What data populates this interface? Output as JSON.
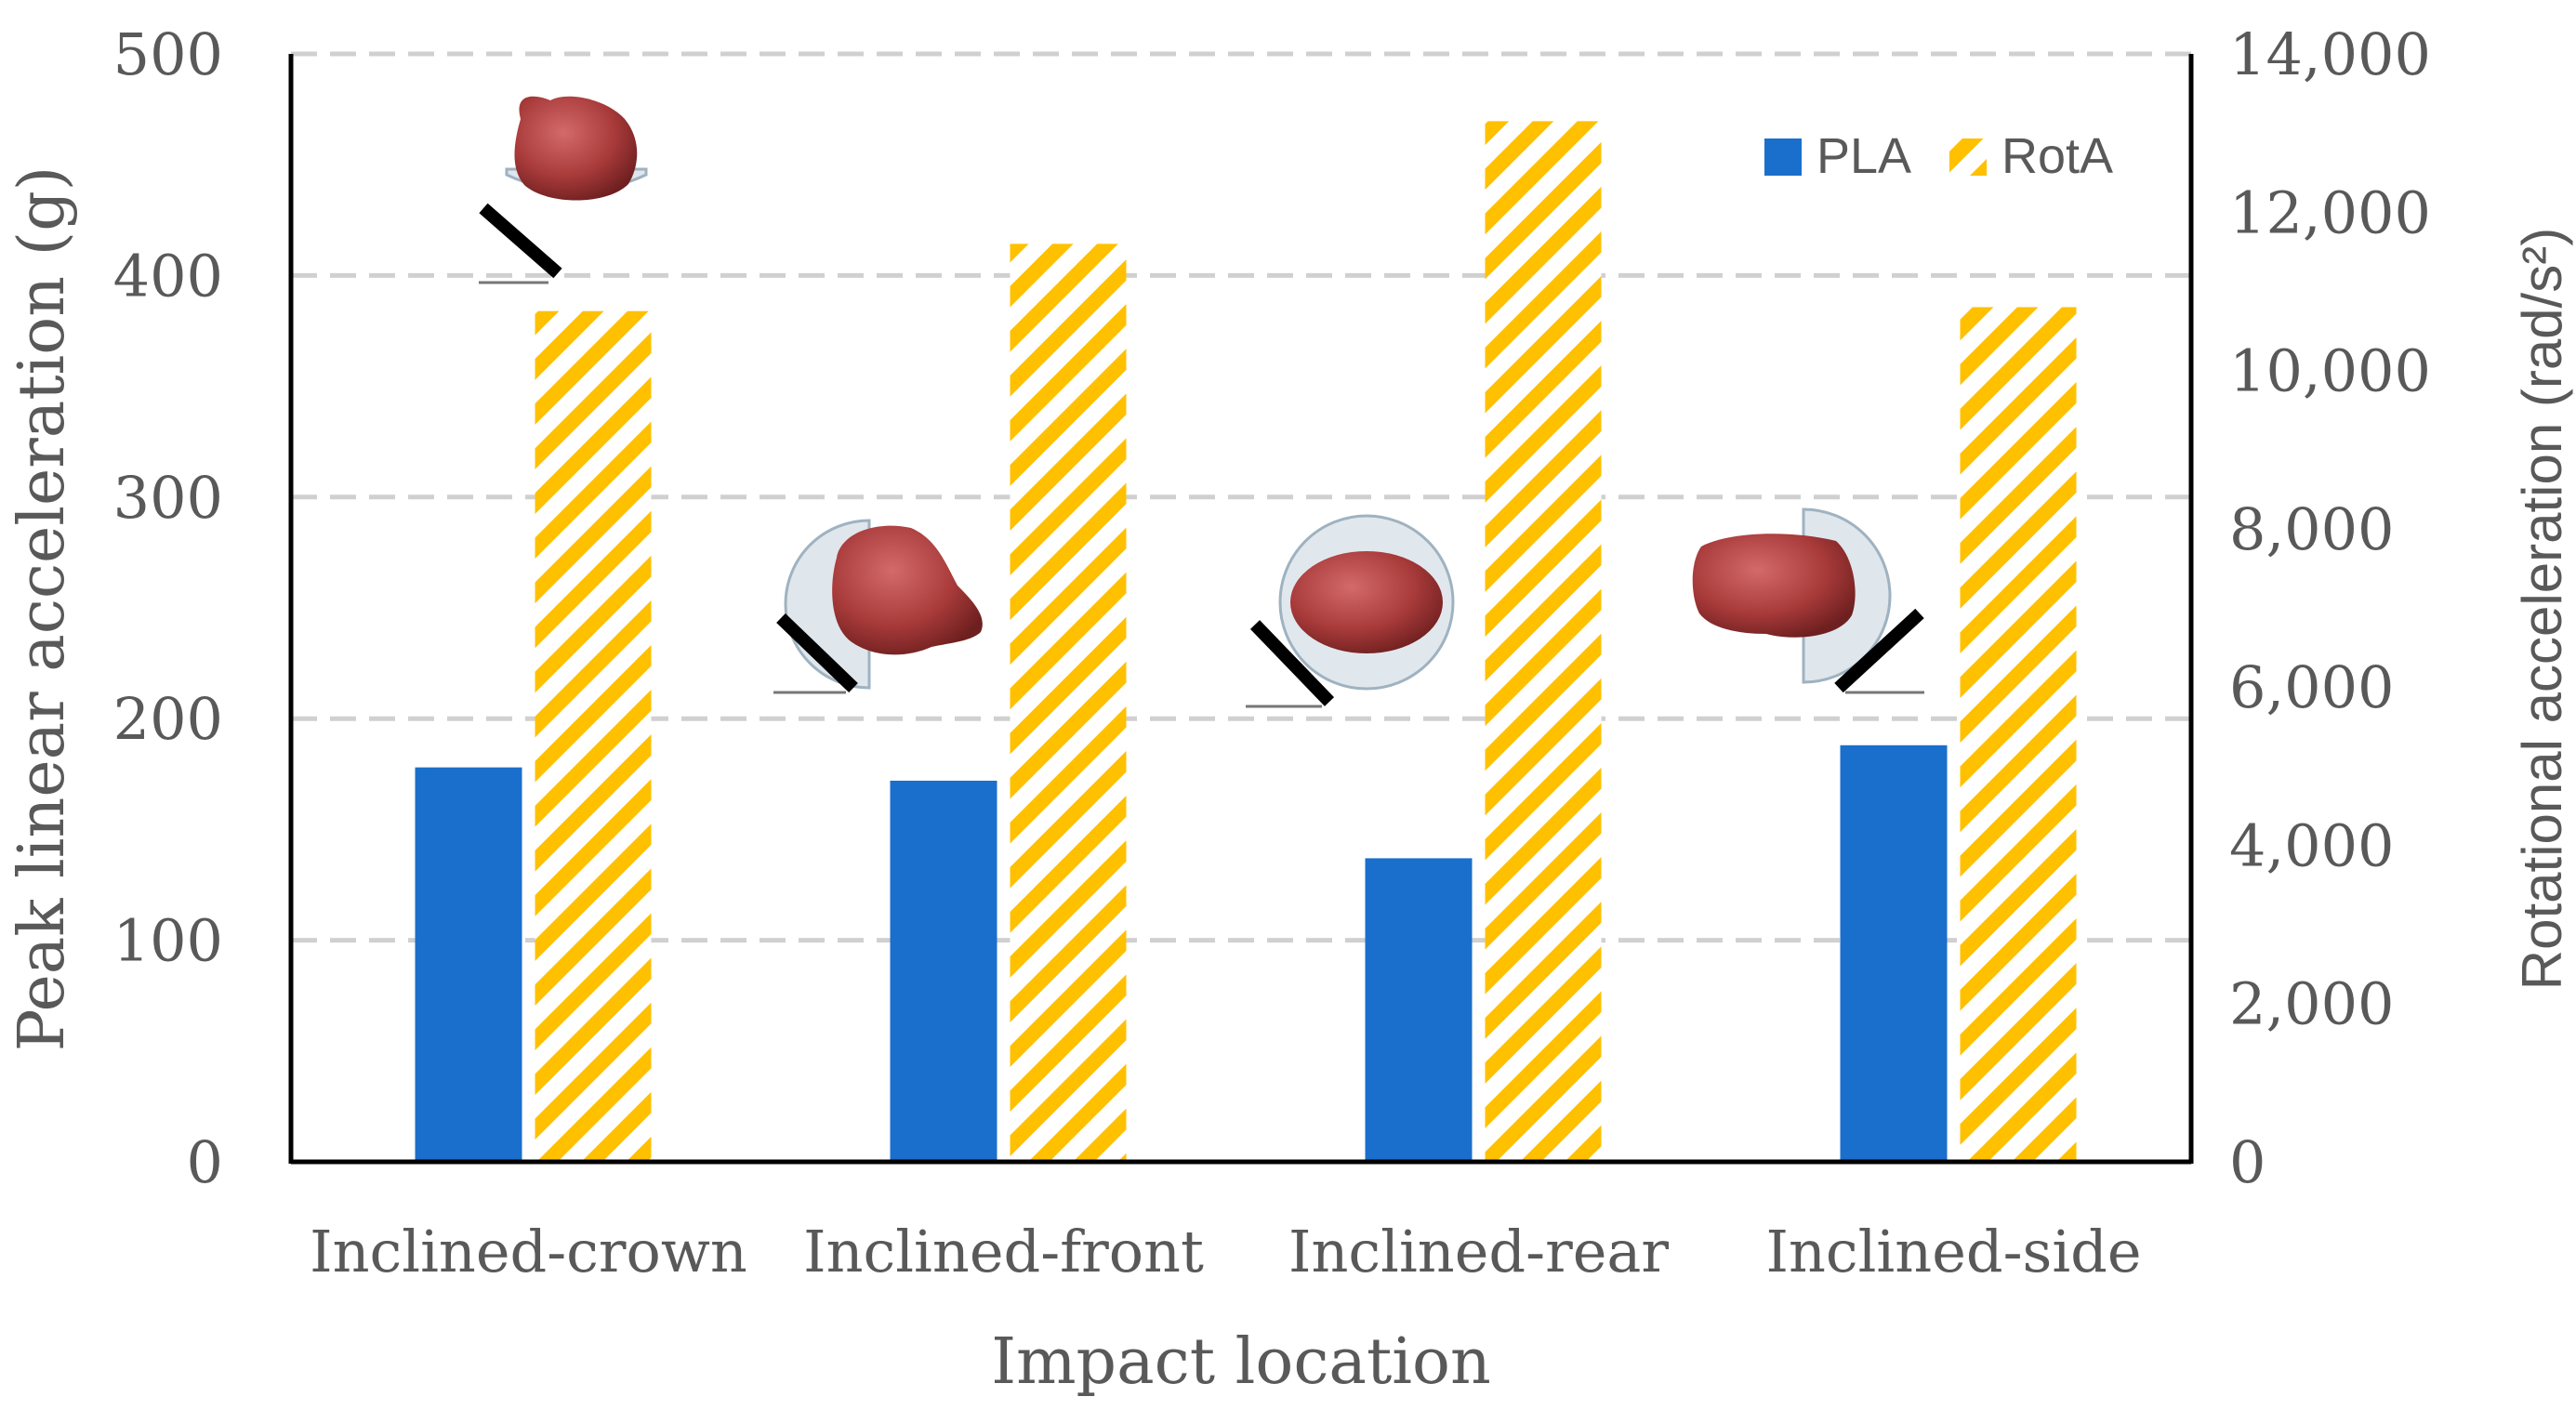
{
  "chart_data": {
    "type": "bar",
    "title": "",
    "xlabel": "Impact location",
    "ylabel": "Peak linear acceleration (g)",
    "y2label": "Rotational acceleration (rad/s²)",
    "categories": [
      "Inclined-crown",
      "Inclined-front",
      "Inclined-rear",
      "Inclined-side"
    ],
    "ylim": [
      0,
      500
    ],
    "y2lim": [
      0,
      14000
    ],
    "yticks": [
      "0",
      "100",
      "200",
      "300",
      "400",
      "500"
    ],
    "y2ticks": [
      "0",
      "2,000",
      "4,000",
      "6,000",
      "8,000",
      "10,000",
      "12,000",
      "14,000"
    ],
    "grid": true,
    "legend_position": "top-right",
    "series": [
      {
        "name": "PLA",
        "axis": "left",
        "values": [
          178,
          172,
          137,
          188
        ],
        "color": "#1a6fcc",
        "pattern": "solid"
      },
      {
        "name": "RotA",
        "axis": "right",
        "values": [
          10750,
          11600,
          13150,
          10800
        ],
        "color": "#ffc000",
        "pattern": "diagonal-hatch"
      }
    ],
    "annotations": [
      "head-impact-illustration-crown",
      "head-impact-illustration-front",
      "head-impact-illustration-rear",
      "head-impact-illustration-side"
    ]
  }
}
